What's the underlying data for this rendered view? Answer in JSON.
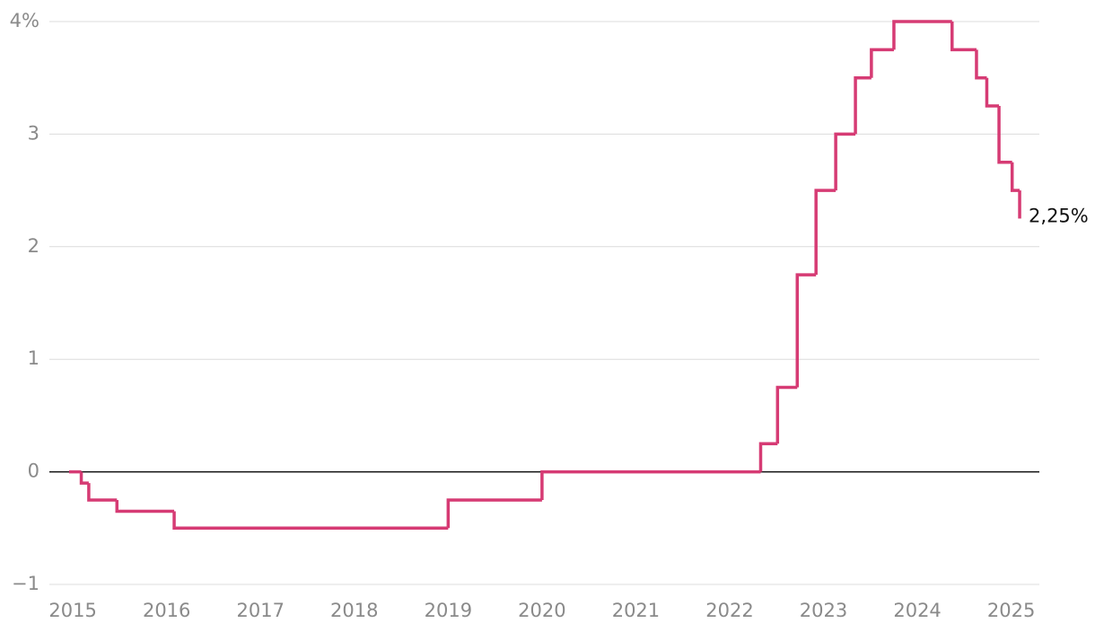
{
  "chart_data": {
    "type": "step",
    "x": [
      2014.96,
      2015.09,
      2015.17,
      2015.47,
      2016.08,
      2019.0,
      2020.0,
      2022.33,
      2022.51,
      2022.72,
      2022.92,
      2023.13,
      2023.34,
      2023.51,
      2023.75,
      2024.37,
      2024.63,
      2024.74,
      2024.87,
      2025.01,
      2025.09
    ],
    "series": [
      {
        "color": "#d63b74",
        "values": [
          0,
          -0.1,
          -0.25,
          -0.35,
          -0.5,
          -0.25,
          0,
          0.25,
          0.75,
          1.75,
          2.5,
          3,
          3.5,
          3.75,
          4,
          3.75,
          3.5,
          3.25,
          2.75,
          2.5,
          2.25
        ],
        "value_labels": [
          null,
          null,
          null,
          null,
          null,
          null,
          null,
          null,
          null,
          null,
          null,
          null,
          null,
          null,
          null,
          null,
          null,
          null,
          null,
          null,
          "2,25%"
        ]
      }
    ],
    "xlim": [
      2014.75,
      2025.3
    ],
    "xticks": [
      2015,
      2016,
      2017,
      2018,
      2019,
      2020,
      2021,
      2022,
      2023,
      2024,
      2025
    ],
    "ylim": [
      -1,
      4
    ],
    "yticks": [
      {
        "value": -1,
        "label": "−1"
      },
      0,
      1,
      2,
      3,
      {
        "value": 4,
        "label": "4%"
      }
    ],
    "grid": true
  }
}
